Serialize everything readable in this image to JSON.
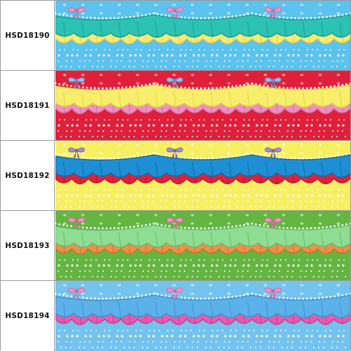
{
  "swatches": [
    {
      "code": "HSD18190",
      "colors": {
        "background": "#5cc2ee",
        "ruffle_top": "#2cc3b4",
        "ruffle_top_fold": "#1e9e93",
        "ruffle_bottom": "#f8ea72",
        "ruffle_bottom_fold": "#e8cf3e",
        "edge": "#ffffff",
        "bow": "#f394c8",
        "bow_edge": "#e0609f",
        "dots": "#ffffff"
      }
    },
    {
      "code": "HSD18191",
      "colors": {
        "background": "#e0203a",
        "ruffle_top": "#f7ee6c",
        "ruffle_top_fold": "#e6d343",
        "ruffle_bottom": "#ef8fc3",
        "ruffle_bottom_fold": "#d66aa7",
        "edge": "#ffffff",
        "bow": "#8fbfee",
        "bow_edge": "#5e93cf",
        "dots": "#ffffff"
      }
    },
    {
      "code": "HSD18192",
      "colors": {
        "background": "#f7ef63",
        "ruffle_top": "#1e8fd4",
        "ruffle_top_fold": "#156ba3",
        "ruffle_bottom": "#e2203a",
        "ruffle_bottom_fold": "#b5182d",
        "edge": "#ffffff",
        "bow": "#a48ddb",
        "bow_edge": "#7a63b8",
        "dots": "#ffffff"
      }
    },
    {
      "code": "HSD18193",
      "colors": {
        "background": "#64b541",
        "ruffle_top": "#8fdc93",
        "ruffle_top_fold": "#62bd6a",
        "ruffle_bottom": "#f08f48",
        "ruffle_bottom_fold": "#d06f2a",
        "edge": "#ffffff",
        "bow": "#f394c8",
        "bow_edge": "#e0609f",
        "dots": "#ffffff"
      }
    },
    {
      "code": "HSD18194",
      "colors": {
        "background": "#74c3ef",
        "ruffle_top": "#5bb1ea",
        "ruffle_top_fold": "#3f93cf",
        "ruffle_bottom": "#e65bb0",
        "ruffle_bottom_fold": "#c43b8f",
        "edge": "#ffffff",
        "bow": "#f394c8",
        "bow_edge": "#e0609f",
        "dots": "#ffffff"
      }
    }
  ]
}
